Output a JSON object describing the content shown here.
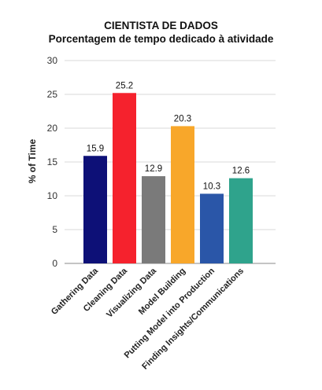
{
  "chart_data": {
    "type": "bar",
    "title": "CIENTISTA DE DADOS",
    "subtitle": "Porcentagem de tempo dedicado à atividade",
    "xlabel": "",
    "ylabel": "% of Time",
    "ylim": [
      0,
      30
    ],
    "yticks": [
      0,
      5,
      10,
      15,
      20,
      25,
      30
    ],
    "grid": true,
    "categories": [
      "Gathering Data",
      "Cleaning Data",
      "Visualizing Data",
      "Model Building",
      "Putting Model into Production",
      "Finding Insights/Communications"
    ],
    "values": [
      15.9,
      25.2,
      12.9,
      20.3,
      10.3,
      12.6
    ],
    "colors": [
      "#0d1077",
      "#f5222d",
      "#7a7a7a",
      "#f8a72a",
      "#2a56a8",
      "#2fa38c"
    ],
    "value_labels": [
      "15.9",
      "25.2",
      "12.9",
      "20.3",
      "10.3",
      "12.6"
    ]
  }
}
